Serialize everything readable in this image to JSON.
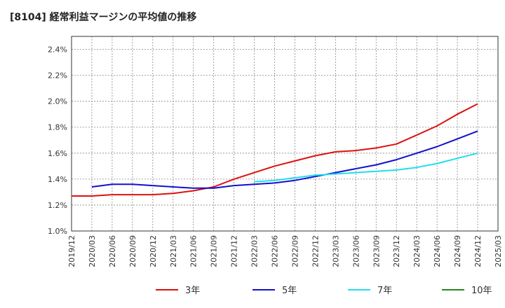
{
  "chart_data": {
    "type": "line",
    "title": "[8104]  経常利益マージンの平均値の推移",
    "xlabel": "",
    "ylabel": "",
    "ylim": [
      1.0,
      2.5
    ],
    "y_ticks": [
      "1.0%",
      "1.2%",
      "1.4%",
      "1.6%",
      "1.8%",
      "2.0%",
      "2.2%",
      "2.4%"
    ],
    "x_ticks": [
      "2019/12",
      "2020/03",
      "2020/06",
      "2020/09",
      "2020/12",
      "2021/03",
      "2021/06",
      "2021/09",
      "2021/12",
      "2022/03",
      "2022/06",
      "2022/09",
      "2022/12",
      "2023/03",
      "2023/06",
      "2023/09",
      "2023/12",
      "2024/03",
      "2024/06",
      "2024/09",
      "2024/12",
      "2025/03"
    ],
    "grid": true,
    "legend_position": "bottom",
    "series": [
      {
        "name": "3年",
        "color": "#dd1111",
        "values": [
          1.27,
          1.27,
          1.28,
          1.28,
          1.28,
          1.29,
          1.31,
          1.34,
          1.4,
          1.45,
          1.5,
          1.54,
          1.58,
          1.61,
          1.62,
          1.64,
          1.67,
          1.74,
          1.81,
          1.9,
          1.98,
          null
        ]
      },
      {
        "name": "5年",
        "color": "#1111cc",
        "values": [
          null,
          1.34,
          1.36,
          1.36,
          1.35,
          1.34,
          1.33,
          1.33,
          1.35,
          1.36,
          1.37,
          1.39,
          1.42,
          1.45,
          1.48,
          1.51,
          1.55,
          1.6,
          1.65,
          1.71,
          1.77,
          null
        ]
      },
      {
        "name": "7年",
        "color": "#22ddee",
        "values": [
          null,
          null,
          null,
          null,
          null,
          null,
          null,
          null,
          null,
          1.38,
          1.39,
          1.41,
          1.43,
          1.44,
          1.45,
          1.46,
          1.47,
          1.49,
          1.52,
          1.56,
          1.6,
          null
        ]
      },
      {
        "name": "10年",
        "color": "#228822",
        "values": [
          null,
          null,
          null,
          null,
          null,
          null,
          null,
          null,
          null,
          null,
          null,
          null,
          null,
          null,
          null,
          null,
          null,
          null,
          null,
          null,
          null,
          null
        ]
      }
    ]
  }
}
